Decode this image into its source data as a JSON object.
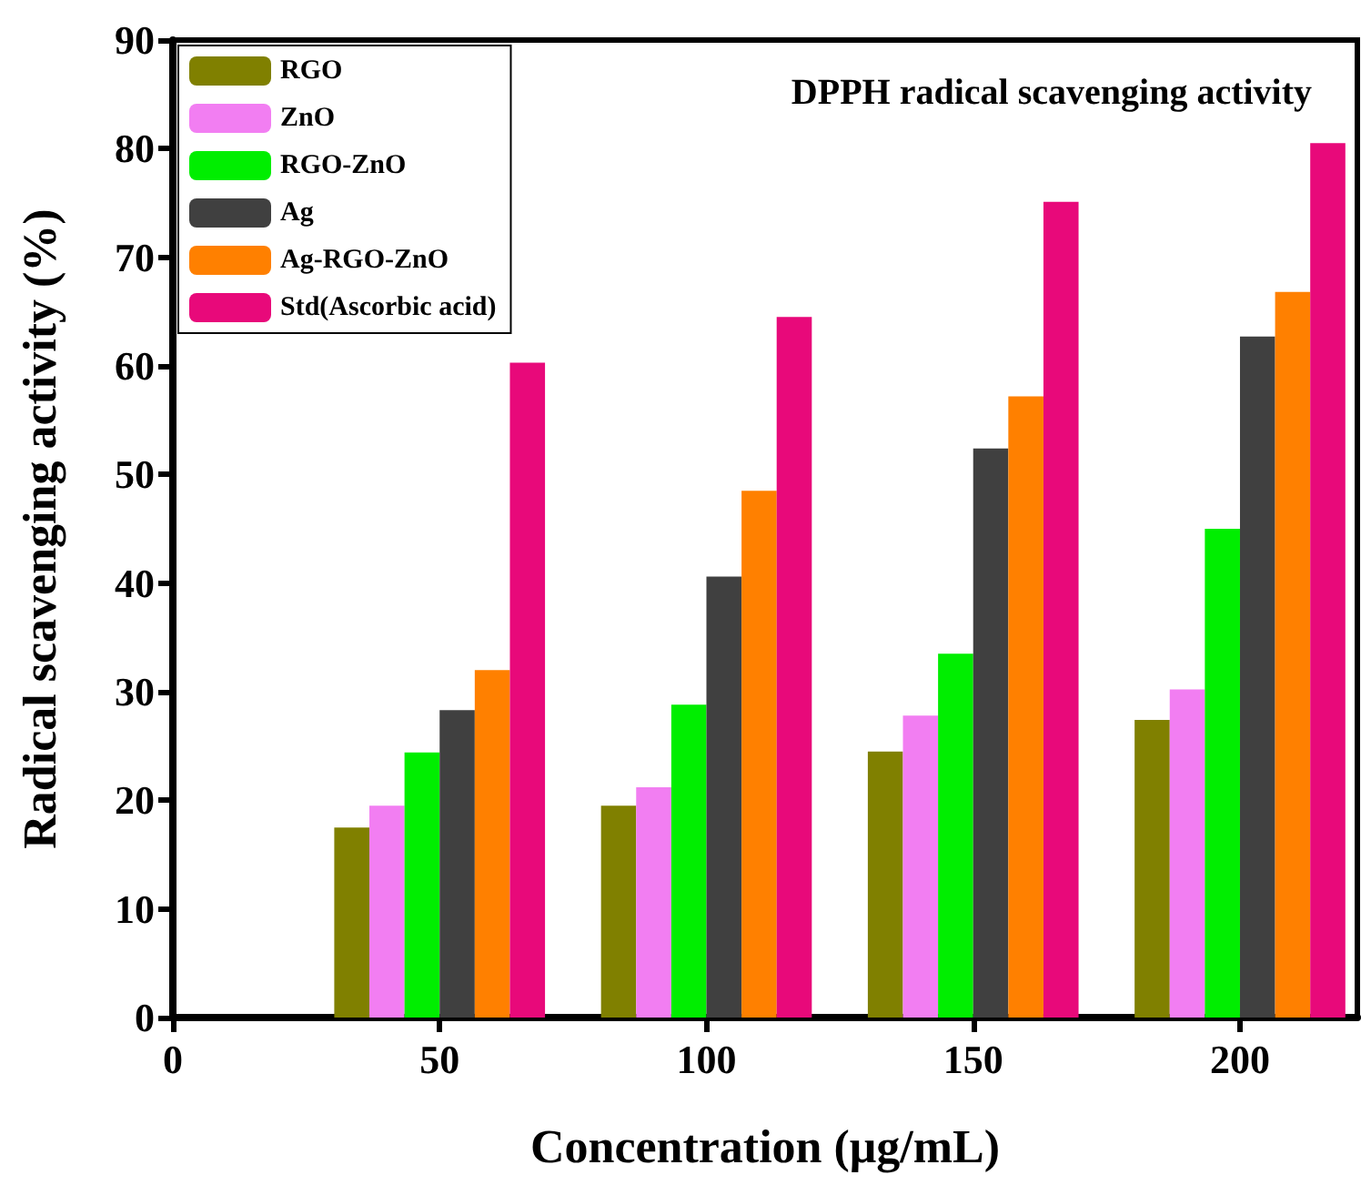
{
  "chart_data": {
    "type": "bar",
    "title": "DPPH radical scavenging activity",
    "xlabel": "Concentration (μg/mL)",
    "ylabel": "Radical scavenging activity (%)",
    "x": [
      50,
      100,
      150,
      200
    ],
    "series": [
      {
        "name": "RGO",
        "color": "#808000",
        "values": [
          17.5,
          19.5,
          24.5,
          27.4
        ]
      },
      {
        "name": "ZnO",
        "color": "#f27ef2",
        "values": [
          19.5,
          21.2,
          27.8,
          30.2
        ]
      },
      {
        "name": "RGO-ZnO",
        "color": "#00ee00",
        "values": [
          24.4,
          28.8,
          33.5,
          45.0
        ]
      },
      {
        "name": "Ag",
        "color": "#404040",
        "values": [
          28.3,
          40.6,
          52.4,
          62.7
        ]
      },
      {
        "name": "Ag-RGO-ZnO",
        "color": "#ff8000",
        "values": [
          32.0,
          48.5,
          57.2,
          66.8
        ]
      },
      {
        "name": "Std(Ascorbic acid)",
        "color": "#e8097a",
        "values": [
          60.3,
          64.5,
          75.1,
          80.5
        ]
      }
    ],
    "xlim": [
      0,
      222
    ],
    "xticks": [
      0,
      50,
      100,
      150,
      200
    ],
    "ylim": [
      0,
      90
    ],
    "yticks": [
      0,
      10,
      20,
      30,
      40,
      50,
      60,
      70,
      80,
      90
    ],
    "grid": false,
    "legend": "top left"
  }
}
